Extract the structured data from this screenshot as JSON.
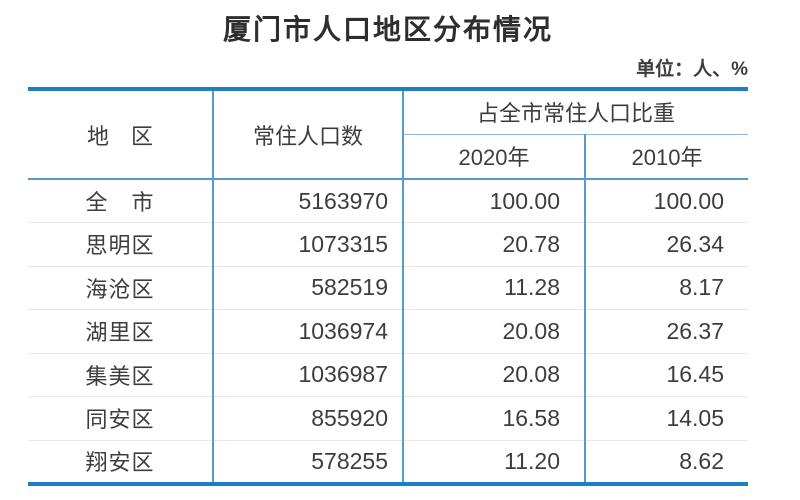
{
  "title": "厦门市人口地区分布情况",
  "unit_label": "单位：人、%",
  "table": {
    "headers": {
      "region": "地　区",
      "population": "常住人口数",
      "share_group": "占全市常住人口比重",
      "year_2020": "2020年",
      "year_2010": "2010年"
    },
    "rows": [
      {
        "region": "全　市",
        "population": "5163970",
        "share_2020": "100.00",
        "share_2010": "100.00"
      },
      {
        "region": "思明区",
        "population": "1073315",
        "share_2020": "20.78",
        "share_2010": "26.34"
      },
      {
        "region": "海沧区",
        "population": "582519",
        "share_2020": "11.28",
        "share_2010": "8.17"
      },
      {
        "region": "湖里区",
        "population": "1036974",
        "share_2020": "20.08",
        "share_2010": "26.37"
      },
      {
        "region": "集美区",
        "population": "1036987",
        "share_2020": "20.08",
        "share_2010": "16.45"
      },
      {
        "region": "同安区",
        "population": "855920",
        "share_2020": "16.58",
        "share_2010": "14.05"
      },
      {
        "region": "翔安区",
        "population": "578255",
        "share_2020": "11.20",
        "share_2010": "8.62"
      }
    ]
  },
  "colors": {
    "border_blue": "#1b7fc4",
    "grid_blue": "#5b9ac7",
    "subhead_blue": "#8fb8d8",
    "row_divider": "#e9e6e3",
    "text_dark": "#3d3d3d",
    "title_dark": "#2e2e2e"
  },
  "chart_data": {
    "type": "table",
    "title": "厦门市人口地区分布情况",
    "unit": "单位：人、%",
    "columns": [
      "地区",
      "常住人口数",
      "占全市常住人口比重 2020年",
      "占全市常住人口比重 2010年"
    ],
    "rows": [
      [
        "全市",
        5163970,
        100.0,
        100.0
      ],
      [
        "思明区",
        1073315,
        20.78,
        26.34
      ],
      [
        "海沧区",
        582519,
        11.28,
        8.17
      ],
      [
        "湖里区",
        1036974,
        20.08,
        26.37
      ],
      [
        "集美区",
        1036987,
        20.08,
        16.45
      ],
      [
        "同安区",
        855920,
        16.58,
        14.05
      ],
      [
        "翔安区",
        578255,
        11.2,
        8.62
      ]
    ]
  }
}
